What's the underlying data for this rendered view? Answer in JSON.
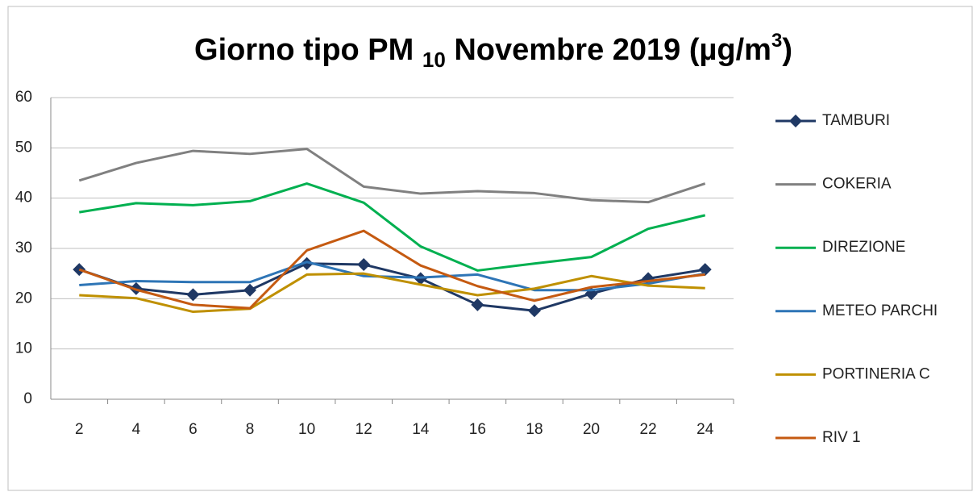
{
  "chart_data": {
    "type": "line",
    "title": {
      "main": "Giorno tipo PM",
      "sub": "10",
      "rest": "Novembre 2019 (µg/m",
      "sup": "3",
      "end": ")"
    },
    "categories": [
      "2",
      "4",
      "6",
      "8",
      "10",
      "12",
      "14",
      "16",
      "18",
      "20",
      "22",
      "24"
    ],
    "series": [
      {
        "name": "TAMBURI",
        "color": "#1f3864",
        "marker": "diamond",
        "values": [
          25.8,
          22,
          20.8,
          21.7,
          27,
          26.8,
          24,
          18.8,
          17.6,
          21,
          24,
          25.8
        ]
      },
      {
        "name": "COKERIA",
        "color": "#808080",
        "values": [
          43.5,
          47,
          49.4,
          48.8,
          49.8,
          42.3,
          40.9,
          41.4,
          41,
          39.6,
          39.2,
          42.9
        ]
      },
      {
        "name": "DIREZIONE",
        "color": "#00b050",
        "values": [
          37.2,
          39,
          38.6,
          39.4,
          42.9,
          39.1,
          30.4,
          25.6,
          27,
          28.3,
          33.9,
          36.6
        ]
      },
      {
        "name": "METEO PARCHI",
        "color": "#2e75b6",
        "values": [
          22.7,
          23.5,
          23.3,
          23.3,
          27.3,
          24.5,
          24.2,
          24.8,
          21.7,
          21.7,
          23,
          25
        ]
      },
      {
        "name": "PORTINERIA C",
        "color": "#bf9000",
        "values": [
          20.7,
          20.1,
          17.4,
          18,
          24.8,
          25,
          22.8,
          20.7,
          22,
          24.5,
          22.6,
          22.1
        ]
      },
      {
        "name": "RIV 1",
        "color": "#c55a11",
        "values": [
          25.8,
          21.8,
          18.8,
          18.1,
          29.6,
          33.5,
          26.6,
          22.5,
          19.6,
          22.3,
          23.5,
          24.8
        ]
      }
    ],
    "ylim": [
      0,
      60
    ],
    "yticks": [
      0,
      10,
      20,
      30,
      40,
      50,
      60
    ],
    "grid": true,
    "legend": "right"
  }
}
